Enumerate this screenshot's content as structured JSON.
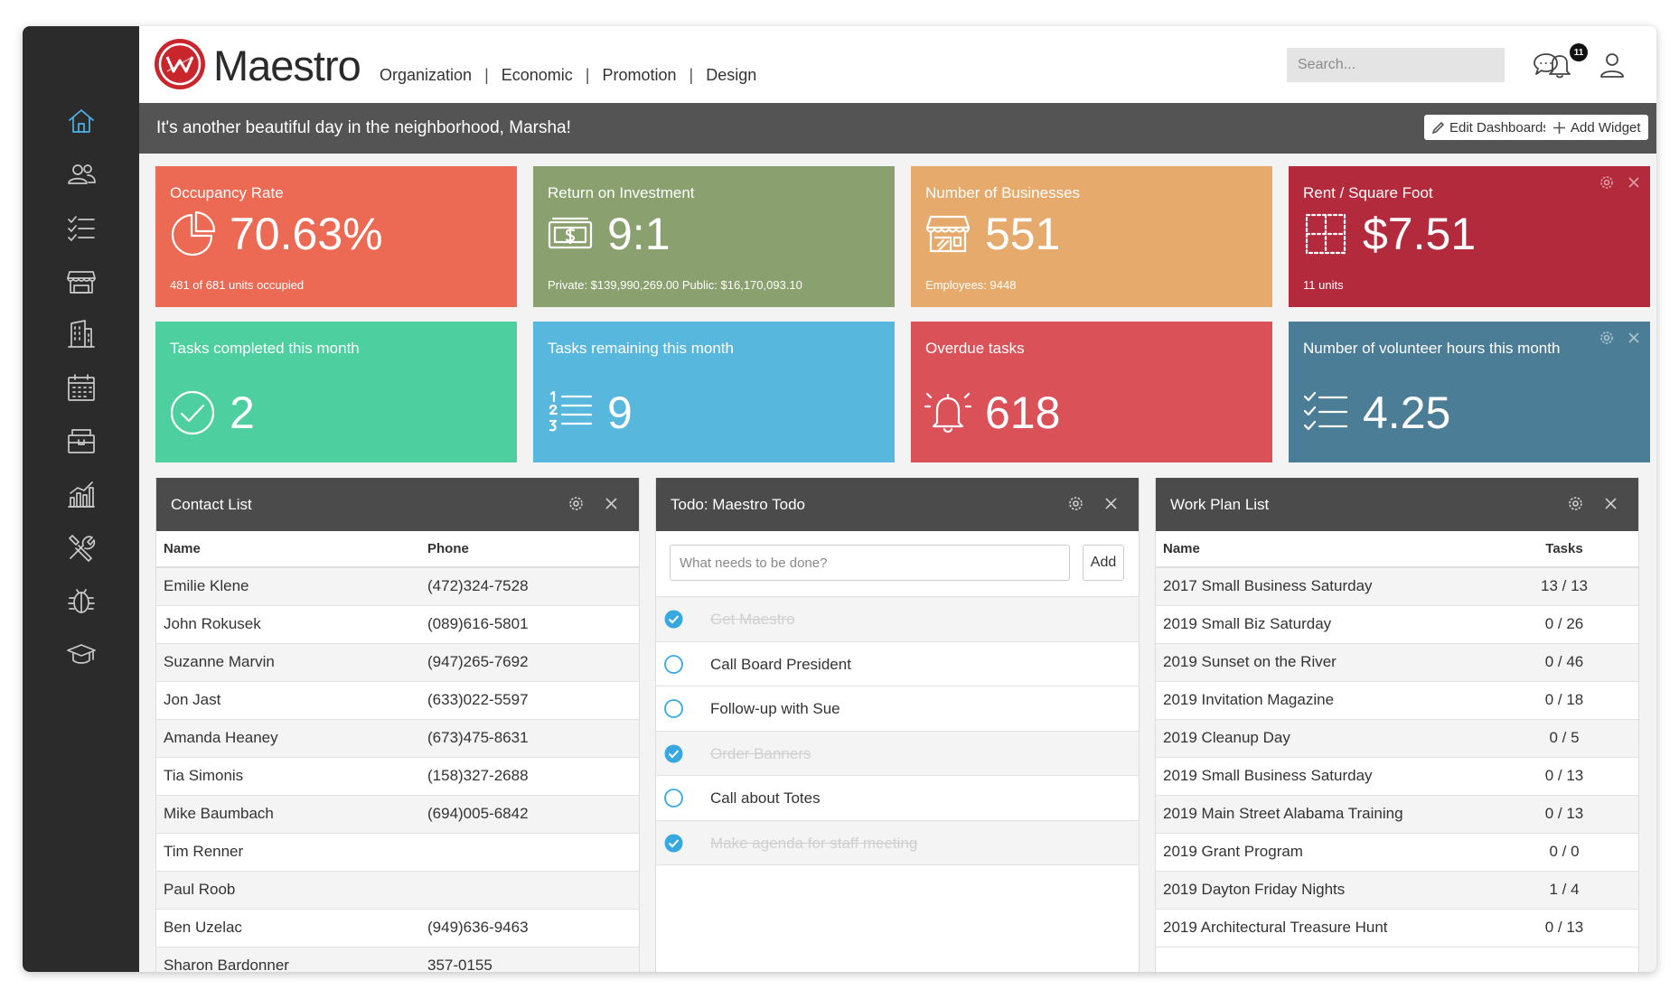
{
  "brand": {
    "name": "Maestro",
    "accent": "#c8262c"
  },
  "nav": [
    "Organization",
    "Economic",
    "Promotion",
    "Design"
  ],
  "search": {
    "placeholder": "Search..."
  },
  "notifications": {
    "count": "11"
  },
  "greeting": "It's another beautiful day in the neighborhood, Marsha!",
  "buttons": {
    "edit_dashboards": "Edit Dashboards",
    "add_widget": "Add Widget"
  },
  "sidebar_icons": [
    "home-icon",
    "people-icon",
    "checklist-icon",
    "storefront-icon",
    "building-icon",
    "calendar-icon",
    "wallet-icon",
    "chart-icon",
    "tools-icon",
    "bug-icon",
    "graduation-cap-icon"
  ],
  "tiles": [
    {
      "title": "Occupancy Rate",
      "value": "70.63%",
      "sub": "481 of 681 units occupied",
      "icon": "pie-chart-icon",
      "color": "#ec6a53"
    },
    {
      "title": "Return on Investment",
      "value": "9:1",
      "sub": "Private: $139,990,269.00 Public: $16,170,093.10",
      "icon": "money-icon",
      "color": "#8aa06e"
    },
    {
      "title": "Number of Businesses",
      "value": "551",
      "sub": "Employees: 9448",
      "icon": "storefront-icon",
      "color": "#e6aa6c"
    },
    {
      "title": "Rent / Square Foot",
      "value": "$7.51",
      "sub": "11 units",
      "icon": "square-grid-icon",
      "color": "#b32a3c"
    },
    {
      "title": "Tasks completed this month",
      "value": "2",
      "sub": "",
      "icon": "check-circle-icon",
      "color": "#4dcfa0"
    },
    {
      "title": "Tasks remaining this month",
      "value": "9",
      "sub": "",
      "icon": "numbered-list-icon",
      "color": "#58b7dc"
    },
    {
      "title": "Overdue tasks",
      "value": "618",
      "sub": "",
      "icon": "alarm-bell-icon",
      "color": "#db5158"
    },
    {
      "title": "Number of volunteer hours this month",
      "value": "4.25",
      "sub": "",
      "icon": "checklist-icon",
      "color": "#4c7d96"
    }
  ],
  "contacts": {
    "title": "Contact List",
    "columns": [
      "Name",
      "Phone"
    ],
    "rows": [
      [
        "Emilie Klene",
        "(472)324-7528"
      ],
      [
        "John Rokusek",
        "(089)616-5801"
      ],
      [
        "Suzanne Marvin",
        "(947)265-7692"
      ],
      [
        "Jon Jast",
        "(633)022-5597"
      ],
      [
        "Amanda Heaney",
        "(673)475-8631"
      ],
      [
        "Tia Simonis",
        "(158)327-2688"
      ],
      [
        "Mike Baumbach",
        "(694)005-6842"
      ],
      [
        "Tim Renner",
        ""
      ],
      [
        "Paul Roob",
        ""
      ],
      [
        "Ben Uzelac",
        "(949)636-9463"
      ],
      [
        "Sharon Bardonner",
        "357-0155"
      ]
    ]
  },
  "todo": {
    "title": "Todo: Maestro Todo",
    "placeholder": "What needs to be done?",
    "add_label": "Add",
    "items": [
      {
        "text": "Get Maestro",
        "done": true
      },
      {
        "text": "Call Board President",
        "done": false
      },
      {
        "text": "Follow-up with Sue",
        "done": false
      },
      {
        "text": "Order Banners",
        "done": true
      },
      {
        "text": "Call about Totes",
        "done": false
      },
      {
        "text": "Make agenda for staff meeting",
        "done": true
      }
    ]
  },
  "workplan": {
    "title": "Work Plan List",
    "columns": [
      "Name",
      "Tasks"
    ],
    "rows": [
      [
        "2017 Small Business Saturday",
        "13 / 13"
      ],
      [
        "2019 Small Biz Saturday",
        "0 / 26"
      ],
      [
        "2019 Sunset on the River",
        "0 / 46"
      ],
      [
        "2019 Invitation Magazine",
        "0 / 18"
      ],
      [
        "2019 Cleanup Day",
        "0 / 5"
      ],
      [
        "2019 Small Business Saturday",
        "0 / 13"
      ],
      [
        "2019 Main Street Alabama Training",
        "0 / 13"
      ],
      [
        "2019 Grant Program",
        "0 / 0"
      ],
      [
        "2019 Dayton Friday Nights",
        "1 / 4"
      ],
      [
        "2019 Architectural Treasure Hunt",
        "0 / 13"
      ]
    ]
  },
  "colors": {
    "sidebar": "#2b2b2b",
    "header_bar": "#545454",
    "panel_head": "#4b4b4b",
    "active_icon": "#4fb3e8",
    "check": "#37a9e0"
  }
}
